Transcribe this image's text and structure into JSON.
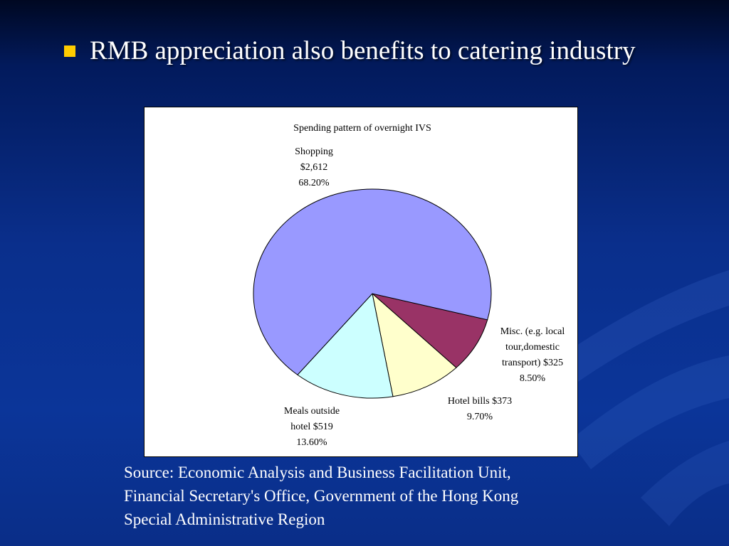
{
  "bullet": {
    "text": "RMB appreciation also benefits to catering industry"
  },
  "colors": {
    "bullet": "#ffcc00",
    "shopping": "#9999ff",
    "misc": "#993366",
    "hotel": "#ffffcc",
    "meals": "#ccffff"
  },
  "chart_data": {
    "type": "pie",
    "title": "Spending pattern of overnight IVS",
    "slices": [
      {
        "name": "Shopping",
        "amount": "$2,612",
        "percent_label": "68.20%",
        "value": 68.2,
        "color": "#9999ff"
      },
      {
        "name": "Misc. (e.g. local tour,domestic transport)",
        "amount": "$325",
        "percent_label": "8.50%",
        "value": 8.5,
        "color": "#993366"
      },
      {
        "name": "Hotel bills",
        "amount": "$373",
        "percent_label": "9.70%",
        "value": 9.7,
        "color": "#ffffcc"
      },
      {
        "name": "Meals outside hotel",
        "amount": "$519",
        "percent_label": "13.60%",
        "value": 13.6,
        "color": "#ccffff"
      }
    ],
    "label_lines": [
      [
        "Shopping",
        "$2,612",
        "68.20%"
      ],
      [
        "Misc. (e.g. local",
        "tour,domestic",
        "transport) $325",
        "8.50%"
      ],
      [
        "Hotel bills $373",
        "9.70%"
      ],
      [
        "Meals outside",
        "hotel $519",
        "13.60%"
      ]
    ],
    "legend": "none"
  },
  "source": {
    "lines": [
      "Source: Economic Analysis and Business Facilitation Unit,",
      "Financial Secretary's Office, Government of the Hong Kong",
      "Special Administrative Region"
    ]
  }
}
